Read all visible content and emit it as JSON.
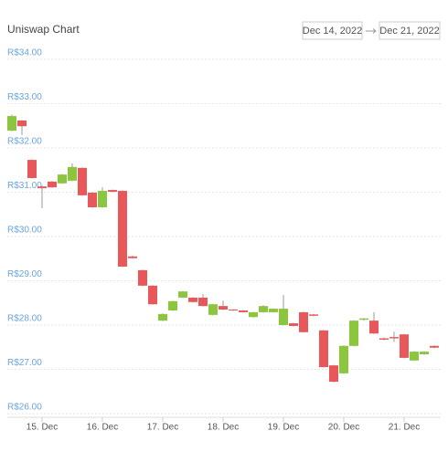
{
  "chart_data": {
    "type": "candlestick",
    "title": "Uniswap Chart",
    "range_from": "Dec 14, 2022",
    "range_to": "Dec 21, 2022",
    "categories": [
      null,
      null,
      null,
      "15. Dec",
      null,
      null,
      null,
      null,
      null,
      "16. Dec",
      null,
      null,
      null,
      null,
      null,
      "17. Dec",
      null,
      null,
      null,
      null,
      null,
      "18. Dec",
      null,
      null,
      null,
      null,
      null,
      "19. Dec",
      null,
      null,
      null,
      null,
      null,
      "20. Dec",
      null,
      null,
      null,
      null,
      null,
      "21. Dec",
      null,
      null,
      null
    ],
    "open": [
      32.39,
      32.62,
      31.73,
      31.13,
      31.24,
      31.2,
      31.26,
      31.55,
      30.99,
      30.66,
      31.05,
      31.03,
      29.55,
      29.24,
      28.89,
      28.1,
      28.33,
      28.62,
      28.62,
      28.62,
      28.23,
      28.43,
      28.35,
      28.33,
      28.18,
      28.29,
      28.29,
      28.0,
      28.04,
      28.29,
      28.24,
      27.88,
      27.09,
      26.91,
      27.53,
      28.12,
      28.1,
      27.7,
      27.73,
      27.79,
      27.2,
      27.34,
      27.53
    ],
    "high": [
      32.75,
      32.63,
      31.74,
      31.15,
      31.25,
      31.41,
      31.65,
      31.56,
      31.0,
      31.11,
      31.06,
      31.04,
      29.57,
      29.25,
      28.9,
      28.26,
      28.55,
      28.77,
      28.63,
      28.7,
      28.48,
      28.55,
      28.36,
      28.34,
      28.3,
      28.45,
      28.38,
      28.68,
      28.05,
      28.3,
      28.25,
      27.89,
      27.1,
      27.54,
      28.11,
      28.16,
      28.29,
      27.72,
      27.85,
      27.8,
      27.41,
      27.41,
      27.54
    ],
    "low": [
      32.38,
      32.29,
      31.31,
      30.64,
      31.1,
      31.19,
      31.25,
      30.92,
      30.65,
      30.65,
      31.0,
      29.31,
      29.5,
      28.88,
      28.46,
      28.09,
      28.32,
      28.61,
      28.51,
      28.42,
      28.22,
      28.34,
      28.32,
      28.28,
      28.17,
      28.28,
      28.28,
      27.99,
      27.97,
      27.83,
      28.2,
      27.04,
      26.71,
      26.9,
      27.52,
      28.1,
      27.8,
      27.66,
      27.62,
      27.25,
      27.19,
      27.33,
      27.48
    ],
    "close": [
      32.72,
      32.49,
      31.32,
      31.09,
      31.11,
      31.4,
      31.57,
      30.93,
      30.66,
      31.03,
      31.01,
      29.32,
      29.51,
      28.89,
      28.47,
      28.25,
      28.54,
      28.76,
      28.52,
      28.43,
      28.47,
      28.35,
      28.33,
      28.29,
      28.29,
      28.43,
      28.37,
      28.37,
      27.98,
      27.84,
      28.21,
      27.05,
      26.72,
      27.53,
      28.1,
      28.15,
      27.81,
      27.67,
      27.7,
      27.26,
      27.4,
      27.4,
      27.49
    ],
    "up_color": "#8cc63f",
    "down_color": "#e8575a",
    "ylim": [
      26,
      34
    ],
    "yticks": [
      {
        "value": 26,
        "label": "R$26.00"
      },
      {
        "value": 27,
        "label": "R$27.00"
      },
      {
        "value": 28,
        "label": "R$28.00"
      },
      {
        "value": 29,
        "label": "R$29.00"
      },
      {
        "value": 30,
        "label": "R$30.00"
      },
      {
        "value": 31,
        "label": "R$31.00"
      },
      {
        "value": 32,
        "label": "R$32.00"
      },
      {
        "value": 33,
        "label": "R$33.00"
      },
      {
        "value": 34,
        "label": "R$34.00"
      }
    ],
    "grid": true
  }
}
